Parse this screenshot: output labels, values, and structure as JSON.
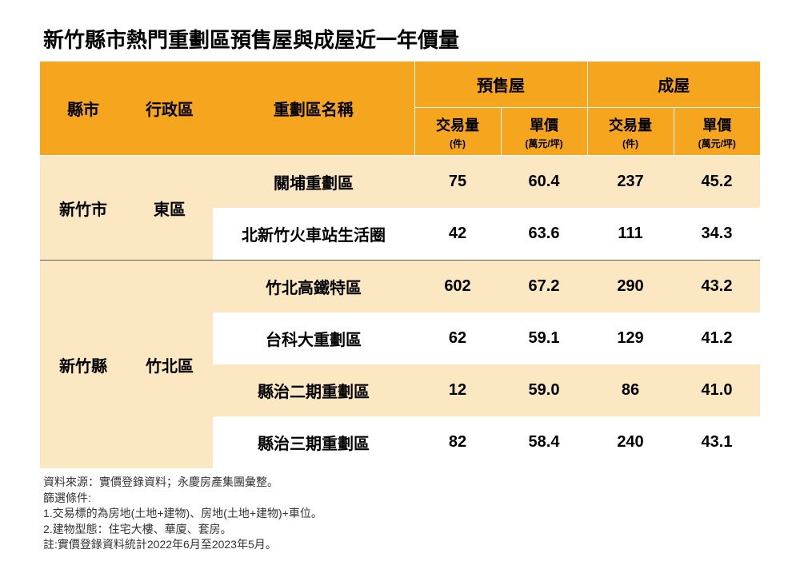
{
  "title": "新竹縣市熱門重劃區預售屋與成屋近一年價量",
  "colors": {
    "header_bg": "#f6a51e",
    "row_odd_bg": "#fbe7c1",
    "row_even_bg": "#ffffff",
    "divider": "#5a5a5a",
    "text": "#000000"
  },
  "header": {
    "county": "縣市",
    "district": "行政區",
    "zone": "重劃區名稱",
    "presale": "預售屋",
    "built": "成屋",
    "volume": "交易量",
    "volume_unit": "(件)",
    "price": "單價",
    "price_unit": "(萬元/坪)"
  },
  "col_widths": [
    "12%",
    "12%",
    "28%",
    "12%",
    "12%",
    "12%",
    "12%"
  ],
  "groups": [
    {
      "county": "新竹市",
      "district": "東區",
      "rows": [
        {
          "zone": "關埔重劃區",
          "pv": "75",
          "pp": "60.4",
          "bv": "237",
          "bp": "45.2"
        },
        {
          "zone": "北新竹火車站生活圈",
          "pv": "42",
          "pp": "63.6",
          "bv": "111",
          "bp": "34.3"
        }
      ]
    },
    {
      "county": "新竹縣",
      "district": "竹北區",
      "rows": [
        {
          "zone": "竹北高鐵特區",
          "pv": "602",
          "pp": "67.2",
          "bv": "290",
          "bp": "43.2"
        },
        {
          "zone": "台科大重劃區",
          "pv": "62",
          "pp": "59.1",
          "bv": "129",
          "bp": "41.2"
        },
        {
          "zone": "縣治二期重劃區",
          "pv": "12",
          "pp": "59.0",
          "bv": "86",
          "bp": "41.0"
        },
        {
          "zone": "縣治三期重劃區",
          "pv": "82",
          "pp": "58.4",
          "bv": "240",
          "bp": "43.1"
        }
      ]
    }
  ],
  "footer": {
    "source": "資料來源：實價登錄資料；永慶房產集團彙整。",
    "filter_title": "篩選條件:",
    "filter1": "1.交易標的為房地(土地+建物)、房地(土地+建物)+車位。",
    "filter2": "2.建物型態：住宅大樓、華廈、套房。",
    "note": "註:實價登錄資料統計2022年6月至2023年5月。"
  }
}
